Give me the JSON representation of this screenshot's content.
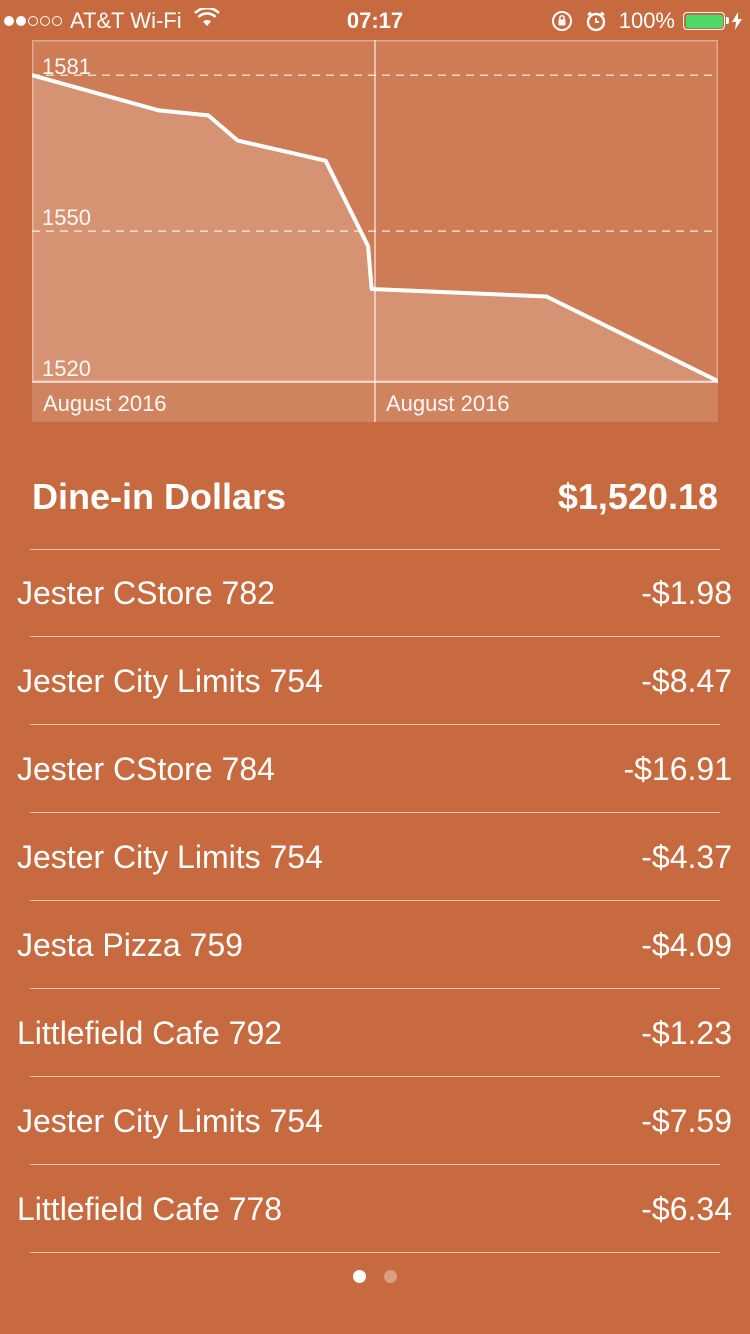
{
  "status_bar": {
    "carrier": "AT&T Wi-Fi",
    "time": "07:17",
    "battery": "100%",
    "signal_bars_filled": 2,
    "signal_bars_total": 5,
    "battery_color": "#4cd964"
  },
  "chart_data": {
    "type": "area",
    "title": "",
    "xlabel": "",
    "ylabel": "",
    "x_tick_labels": [
      "August 2016",
      "August 2016"
    ],
    "y_tick_labels": [
      "1581",
      "1550",
      "1520"
    ],
    "ylim": [
      1520,
      1588
    ],
    "grid": "dashed horizontal at 1581 and 1550, vertical line at midpoint",
    "series": [
      {
        "values": [
          1581,
          1574,
          1573,
          1568,
          1564,
          1547,
          1538.5,
          1538,
          1537,
          1520.18
        ],
        "x_fraction": [
          0,
          0.185,
          0.257,
          0.3,
          0.428,
          0.49,
          0.495,
          0.58,
          0.75,
          1.0
        ]
      }
    ]
  },
  "account": {
    "title": "Dine-in Dollars",
    "balance": "$1,520.18"
  },
  "transactions": [
    {
      "name": "Jester CStore 782",
      "amount": "-$1.98"
    },
    {
      "name": "Jester City Limits 754",
      "amount": "-$8.47"
    },
    {
      "name": "Jester CStore 784",
      "amount": "-$16.91"
    },
    {
      "name": "Jester City Limits 754",
      "amount": "-$4.37"
    },
    {
      "name": "Jesta Pizza 759",
      "amount": "-$4.09"
    },
    {
      "name": "Littlefield Cafe 792",
      "amount": "-$1.23"
    },
    {
      "name": "Jester City Limits 754",
      "amount": "-$7.59"
    },
    {
      "name": "Littlefield Cafe 778",
      "amount": "-$6.34"
    }
  ],
  "pager": {
    "pages": 2,
    "current": 0
  }
}
